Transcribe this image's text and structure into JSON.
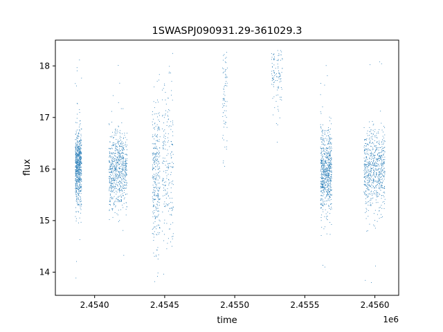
{
  "chart_data": {
    "type": "scatter",
    "title": "1SWASPJ090931.29-361029.3",
    "xlabel": "time",
    "ylabel": "flux",
    "x_offset_label": "1e6",
    "xlim": [
      2453720,
      2456170
    ],
    "ylim": [
      13.55,
      18.5
    ],
    "x_ticks": [
      2453900,
      2454000,
      2454100,
      2454200,
      2454300,
      2454400,
      2454500,
      2454600,
      2454700,
      2454800,
      2454900,
      2455000,
      2455100,
      2455200,
      2455300,
      2455400,
      2455500,
      2455600,
      2455700,
      2455800,
      2455900,
      2456000,
      2456100
    ],
    "x_tick_labels": [
      "",
      "2.4540",
      "",
      "",
      "",
      "",
      "2.4545",
      "",
      "",
      "",
      "",
      "2.4550",
      "",
      "",
      "",
      "",
      "2.4555",
      "",
      "",
      "",
      "",
      "2.4560",
      ""
    ],
    "y_ticks": [
      14,
      15,
      16,
      17,
      18
    ],
    "y_tick_labels": [
      "14",
      "15",
      "16",
      "17",
      "18"
    ],
    "grid": false,
    "marker_color": "#1f77b4",
    "series": [
      {
        "clusters": [
          {
            "x_range": [
              2453860,
              2453905
            ],
            "center": 16.05,
            "spread": 0.35,
            "density": 1.0
          },
          {
            "x_range": [
              2454100,
              2454230
            ],
            "center": 16.0,
            "spread": 0.38,
            "density": 1.0
          },
          {
            "x_range": [
              2454410,
              2454465
            ],
            "center": 15.85,
            "spread": 0.7,
            "density": 0.45
          },
          {
            "x_range": [
              2454480,
              2454560
            ],
            "center": 16.1,
            "spread": 0.8,
            "density": 0.3
          },
          {
            "x_range": [
              2454910,
              2454945
            ],
            "center": 17.6,
            "spread": 0.7,
            "density": 0.12
          },
          {
            "x_range": [
              2455260,
              2455340
            ],
            "center": 17.9,
            "spread": 0.45,
            "density": 0.18
          },
          {
            "x_range": [
              2455610,
              2455690
            ],
            "center": 15.95,
            "spread": 0.4,
            "density": 1.0
          },
          {
            "x_range": [
              2455920,
              2456070
            ],
            "center": 16.0,
            "spread": 0.38,
            "density": 1.0
          }
        ]
      }
    ]
  }
}
